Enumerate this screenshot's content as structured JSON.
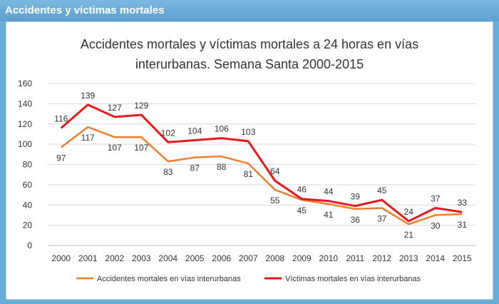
{
  "header": {
    "title": "Accidentes y víctimas mortales"
  },
  "chart_data": {
    "type": "line",
    "title_lines": [
      "Accidentes mortales y víctimas mortales a 24 horas en vías",
      "interurbanas. Semana Santa 2000-2015"
    ],
    "categories": [
      "2000",
      "2001",
      "2002",
      "2003",
      "2004",
      "2005",
      "2006",
      "2007",
      "2008",
      "2009",
      "2010",
      "2011",
      "2012",
      "2013",
      "2014",
      "2015"
    ],
    "ylim": [
      0,
      160
    ],
    "yticks": [
      0,
      20,
      40,
      60,
      80,
      100,
      120,
      140,
      160
    ],
    "grid": true,
    "legend_position": "bottom",
    "series": [
      {
        "name": "Accidentes mortales en vías interurbanas",
        "color": "#ed7d31",
        "label_position": "below",
        "values": [
          97,
          117,
          107,
          107,
          83,
          87,
          88,
          81,
          55,
          45,
          41,
          36,
          37,
          21,
          30,
          31
        ]
      },
      {
        "name": "Víctimas mortales en vías interurbanas",
        "color": "#e31a1c",
        "label_position": "above",
        "values": [
          116,
          139,
          127,
          129,
          102,
          104,
          106,
          103,
          64,
          46,
          44,
          39,
          45,
          24,
          37,
          33
        ]
      }
    ]
  }
}
